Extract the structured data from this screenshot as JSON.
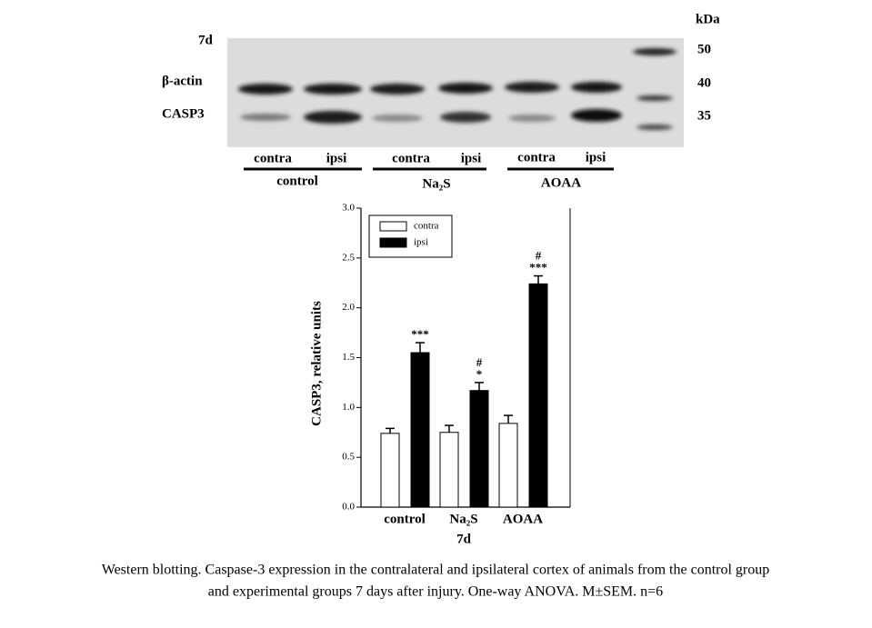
{
  "blot": {
    "time": "7d",
    "rows": [
      "β-actin",
      "CASP3"
    ],
    "kda_title": "kDa",
    "kda": [
      "50",
      "40",
      "35"
    ],
    "lanes": [
      "contra",
      "ipsi",
      "contra",
      "ipsi",
      "contra",
      "ipsi"
    ],
    "groups": [
      "control",
      "Na₂S",
      "AOAA"
    ]
  },
  "chart_data": {
    "type": "bar",
    "ylabel": "CASP3, relative units",
    "xlabel": "7d",
    "categories": [
      "control",
      "Na₂S",
      "AOAA"
    ],
    "series": [
      {
        "name": "contra",
        "color": "#ffffff",
        "values": [
          0.74,
          0.75,
          0.84
        ],
        "errors": [
          0.05,
          0.07,
          0.08
        ]
      },
      {
        "name": "ipsi",
        "color": "#000000",
        "values": [
          1.55,
          1.17,
          2.24
        ],
        "errors": [
          0.1,
          0.08,
          0.08
        ],
        "significance": [
          [
            "***"
          ],
          [
            "#",
            "*"
          ],
          [
            "#",
            "***"
          ]
        ]
      }
    ],
    "ylim": [
      0,
      3
    ],
    "yticks": [
      {
        "value": 0,
        "label": "0.0"
      },
      {
        "value": 0.5,
        "label": "0.5"
      },
      {
        "value": 1,
        "label": "1.0"
      },
      {
        "value": 1.5,
        "label": "1.5"
      },
      {
        "value": 2,
        "label": "2.0"
      },
      {
        "value": 2.5,
        "label": "2.5"
      },
      {
        "value": 3,
        "label": "3.0"
      }
    ],
    "legend": "upper left"
  },
  "caption": [
    "Western blotting. Caspase-3 expression in the contralateral and ipsilateral cortex of animals from the control group",
    "and experimental groups 7 days after injury. One-way ANOVA. M±SEM. n=6"
  ]
}
